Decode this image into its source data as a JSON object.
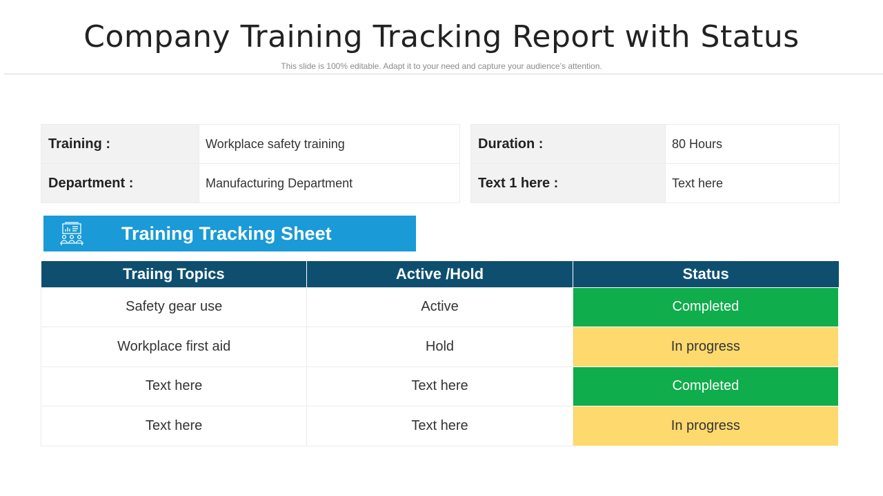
{
  "header": {
    "title": "Company Training Tracking Report with Status",
    "subtitle": "This slide is 100% editable. Adapt it to your need and capture your audience’s attention."
  },
  "info_left": [
    {
      "key": "Training :",
      "value": "Workplace safety training"
    },
    {
      "key": "Department :",
      "value": "Manufacturing Department"
    }
  ],
  "info_right": [
    {
      "key": "Duration :",
      "value": "80 Hours"
    },
    {
      "key": "Text 1 here :",
      "value": "Text here"
    }
  ],
  "sheet": {
    "title": "Training Tracking Sheet",
    "icon": "training-presentation-icon"
  },
  "tracking": {
    "columns": [
      "Traiing Topics",
      "Active /Hold",
      "Status"
    ],
    "rows": [
      {
        "topic": "Safety gear use",
        "state": "Active",
        "status": "Completed",
        "status_color": "#0fad4b"
      },
      {
        "topic": "Workplace first aid",
        "state": "Hold",
        "status": "In progress",
        "status_color": "#fdd96e"
      },
      {
        "topic": "Text here",
        "state": "Text here",
        "status": "Completed",
        "status_color": "#0fad4b"
      },
      {
        "topic": "Text here",
        "state": "Text here",
        "status": "In progress",
        "status_color": "#fdd96e"
      }
    ]
  },
  "colors": {
    "banner": "#1a9ad6",
    "table_header": "#0e4f70",
    "completed": "#0fad4b",
    "in_progress": "#fdd96e"
  }
}
